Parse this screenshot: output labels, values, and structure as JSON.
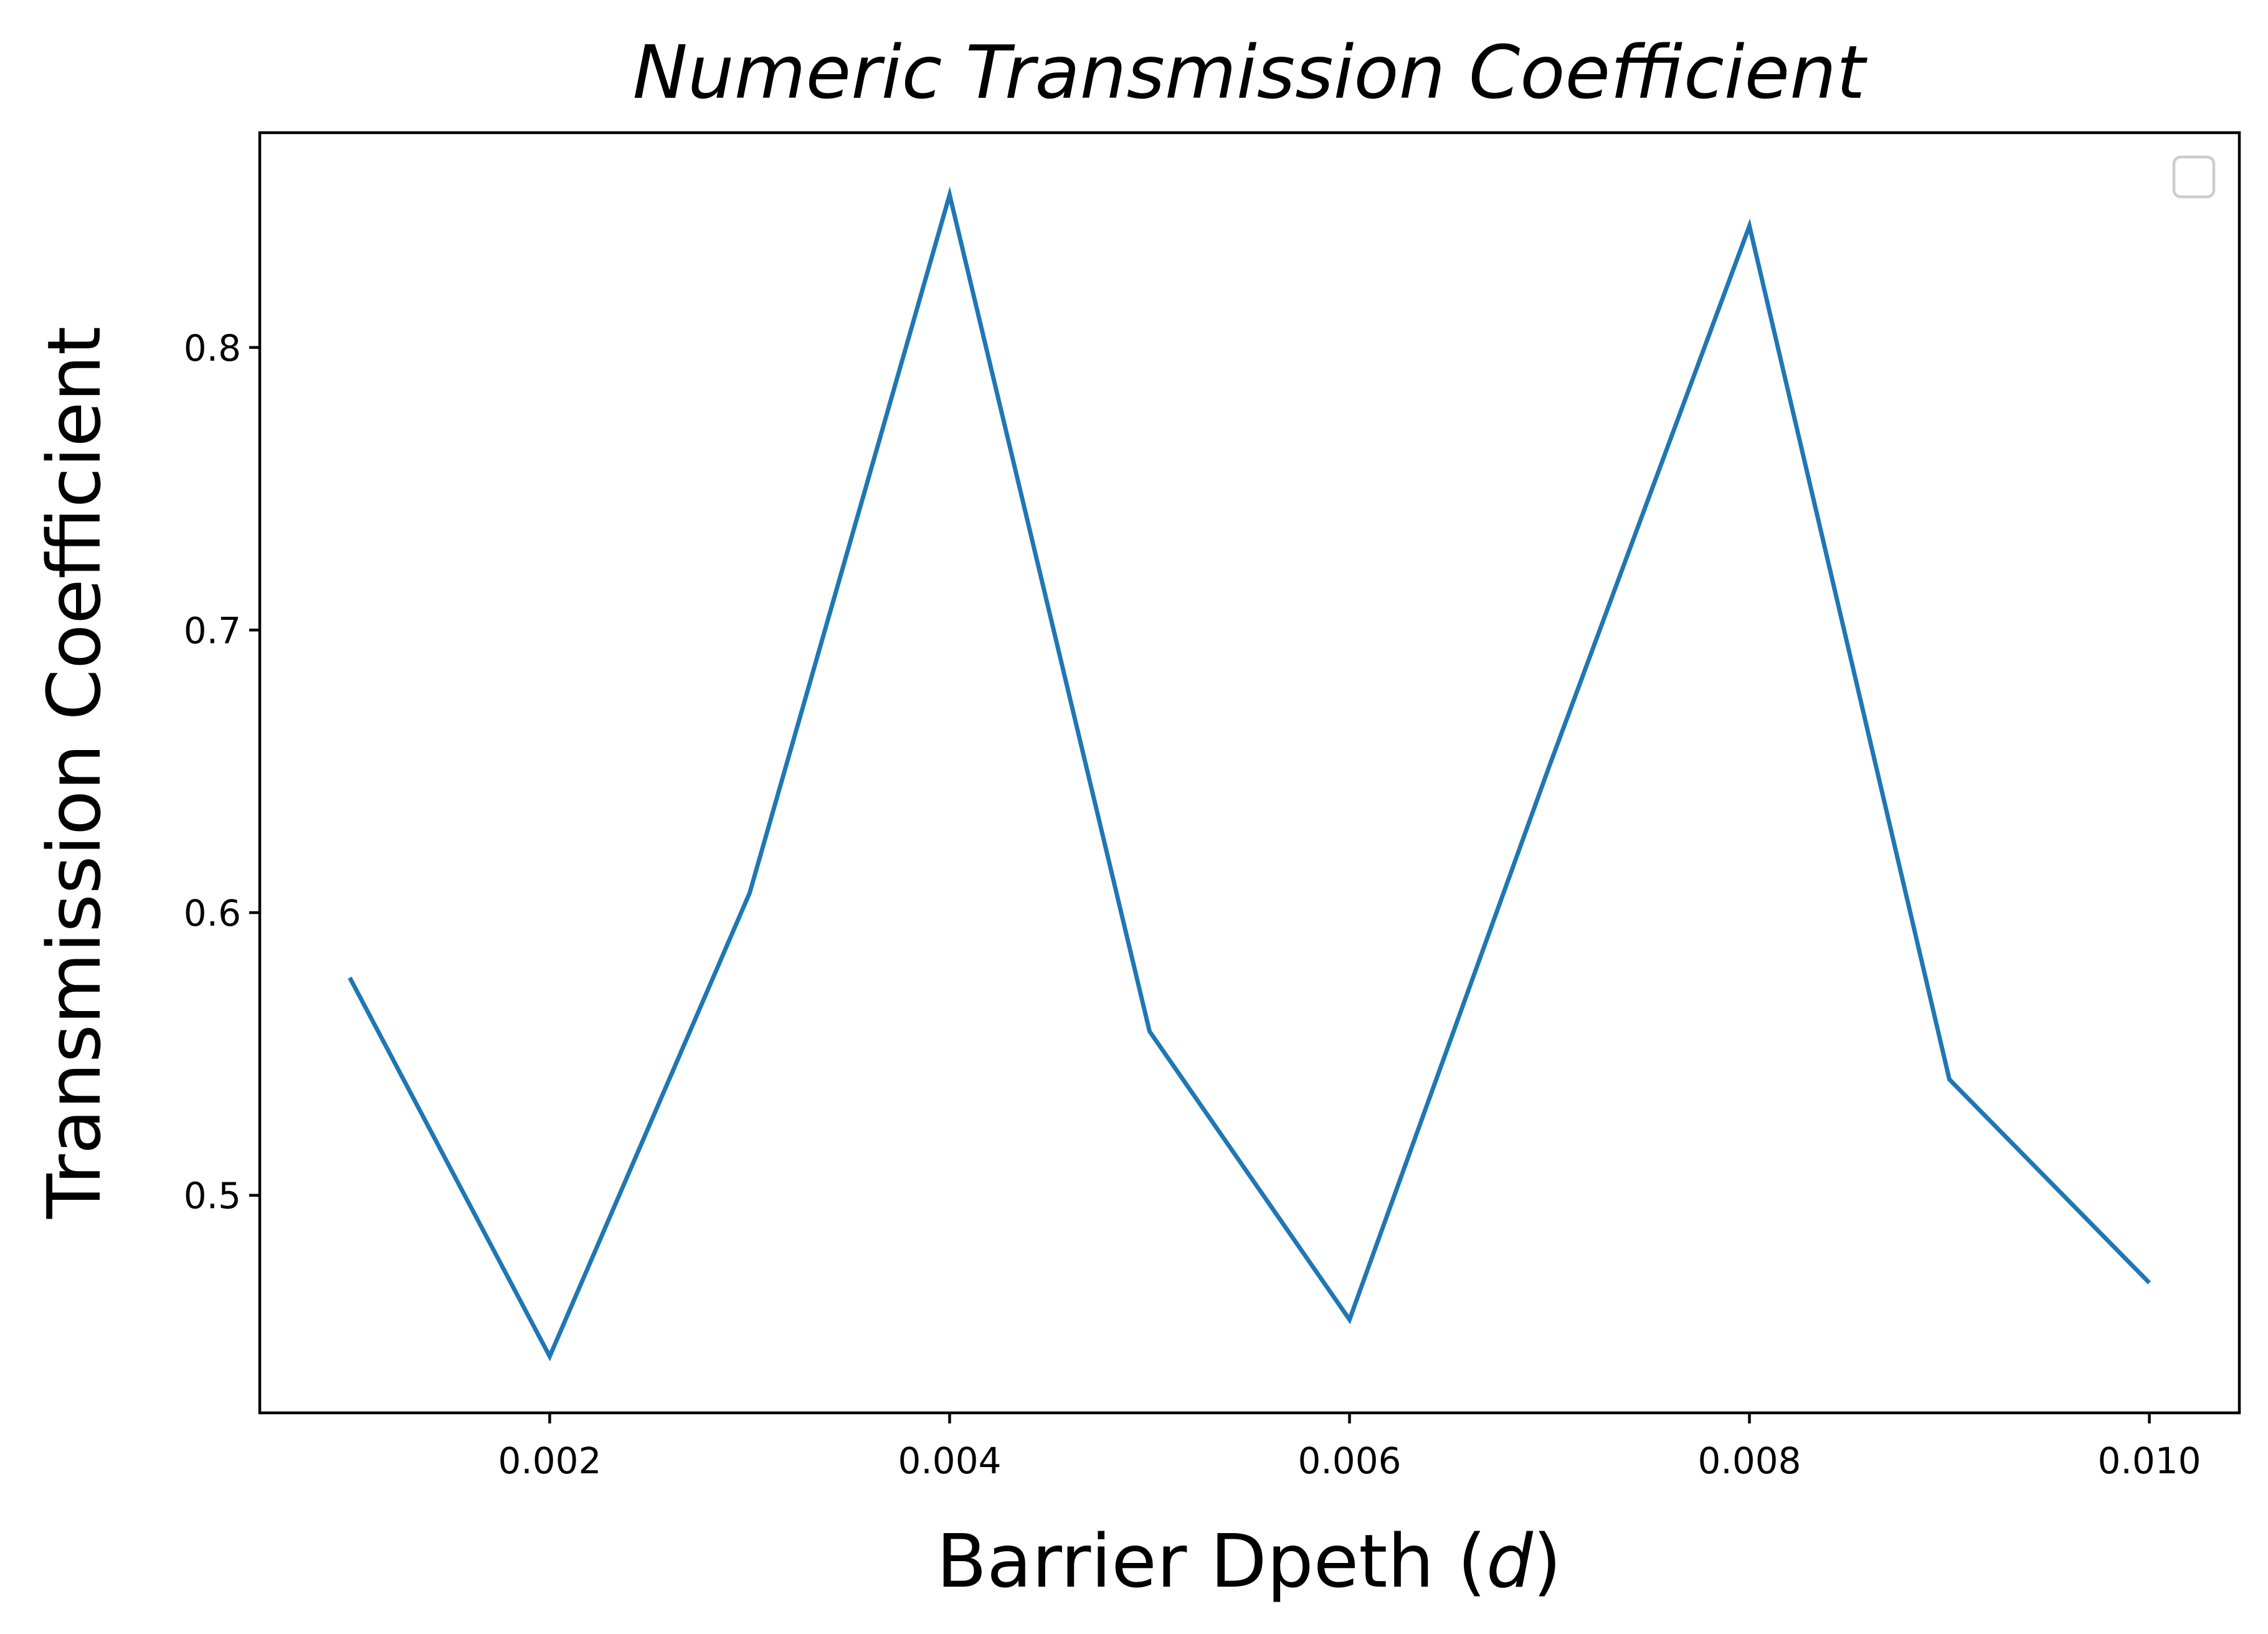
{
  "chart_data": {
    "type": "line",
    "title": "Numeric Transmission Coefficient",
    "xlabel_prefix": "Barrier Dpeth (",
    "xlabel_var": "d",
    "xlabel_suffix": ")",
    "ylabel": "Transmission Coefficient",
    "x_ticks": [
      "0.002",
      "0.004",
      "0.006",
      "0.008",
      "0.010"
    ],
    "y_ticks": [
      "0.5",
      "0.6",
      "0.7",
      "0.8"
    ],
    "xlim": [
      0.00055,
      0.01045
    ],
    "ylim": [
      0.423,
      0.876
    ],
    "grid": false,
    "legend": "top-right, empty",
    "series": [
      {
        "color": "#1f77b4",
        "x": [
          0.001,
          0.002,
          0.003,
          0.004,
          0.005,
          0.006,
          0.007,
          0.008,
          0.009,
          0.01
        ],
        "y": [
          0.577,
          0.443,
          0.607,
          0.854,
          0.558,
          0.456,
          0.652,
          0.843,
          0.541,
          0.469
        ]
      }
    ]
  }
}
